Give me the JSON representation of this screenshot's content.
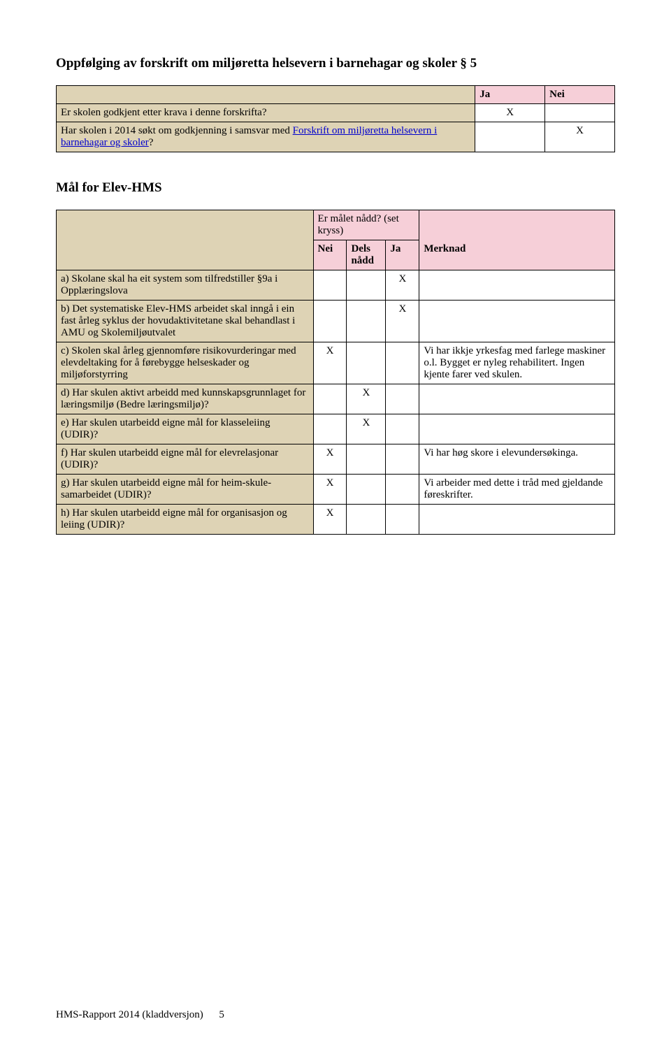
{
  "titles": {
    "section5": "Oppfølging av forskrift om miljøretta helsevern i barnehagar og skoler § 5",
    "malfor": "Mål for Elev-HMS"
  },
  "table1": {
    "headers": {
      "ja": "Ja",
      "nei": "Nei"
    },
    "rows": [
      {
        "q": "Er skolen godkjent etter krava i denne forskrifta?",
        "ja": "X",
        "nei": ""
      },
      {
        "q_pre": "Har skolen i 2014 søkt om godkjenning i samsvar med ",
        "q_link": "Forskrift om  miljøretta helsevern i barnehagar og skoler",
        "q_post": "?",
        "ja": "",
        "nei": "X"
      }
    ]
  },
  "table2": {
    "header_top": "Er målet nådd? (set kryss)",
    "header_cols": {
      "nei": "Nei",
      "dels": "Dels nådd",
      "ja": "Ja",
      "merk": "Merknad"
    },
    "rows": [
      {
        "q": "a) Skolane skal ha eit system som tilfredstiller §9a i Opplæringslova",
        "nei": "",
        "dels": "",
        "ja": "X",
        "merk": ""
      },
      {
        "q": "b) Det systematiske Elev-HMS arbeidet skal inngå i ein fast årleg syklus der hovudaktivitetane skal behandlast i AMU og Skolemiljøutvalet",
        "nei": "",
        "dels": "",
        "ja": "X",
        "merk": ""
      },
      {
        "q": "c) Skolen skal årleg gjennomføre risikovurderingar med elevdeltaking for å førebygge helseskader og miljøforstyrring",
        "nei": "X",
        "dels": "",
        "ja": "",
        "merk": "Vi har ikkje yrkesfag med farlege maskiner o.l. Bygget er nyleg rehabilitert. Ingen kjente farer ved skulen."
      },
      {
        "q": "d) Har skulen aktivt arbeidd med kunnskapsgrunnlaget for læringsmiljø (Bedre læringsmiljø)?",
        "nei": "",
        "dels": "X",
        "ja": "",
        "merk": ""
      },
      {
        "q": "e) Har skulen utarbeidd eigne mål for klasseleiing (UDIR)?",
        "nei": "",
        "dels": "X",
        "ja": "",
        "merk": ""
      },
      {
        "q": "f) Har skulen utarbeidd eigne mål for elevrelasjonar (UDIR)?",
        "nei": "X",
        "dels": "",
        "ja": "",
        "merk": "Vi har høg skore i elevundersøkinga."
      },
      {
        "q": "g) Har skulen utarbeidd eigne mål for heim-skule-samarbeidet (UDIR)?",
        "nei": "X",
        "dels": "",
        "ja": "",
        "merk": "Vi arbeider med dette i tråd med gjeldande føreskrifter."
      },
      {
        "q": "h) Har skulen utarbeidd eigne mål for organisasjon og leiing (UDIR)?",
        "nei": "X",
        "dels": "",
        "ja": "",
        "merk": ""
      }
    ]
  },
  "footer": {
    "text_left": "HMS-Rapport 2014 (kladdversjon)",
    "page_no": "5"
  }
}
